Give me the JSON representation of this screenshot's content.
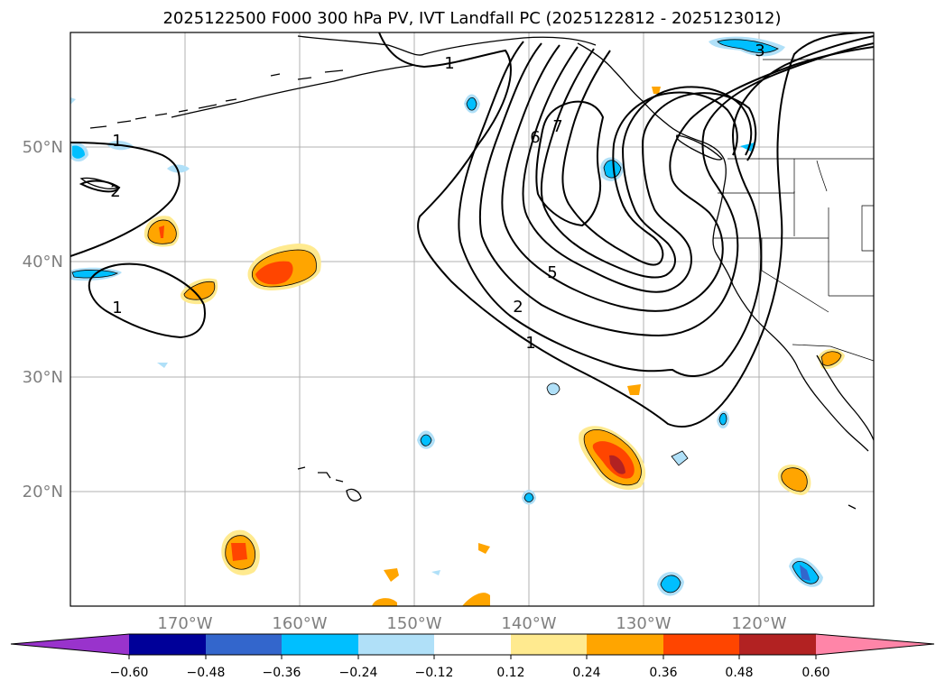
{
  "title": "2025122500 F000 300 hPa PV, IVT Landfall PC (2025122812 - 2025123012)",
  "map": {
    "lon_range": [
      -180,
      -110
    ],
    "lat_range": [
      10,
      60
    ],
    "lat_labels": [
      "50°N",
      "40°N",
      "30°N",
      "20°N"
    ],
    "lon_labels": [
      "170°W",
      "160°W",
      "150°W",
      "140°W",
      "130°W",
      "120°W"
    ]
  },
  "contours": {
    "labels": [
      "1",
      "1",
      "2",
      "1",
      "6",
      "7",
      "5",
      "2",
      "1",
      "3"
    ]
  },
  "colorbar": {
    "colors": [
      "#9933cc",
      "#000099",
      "#3366cc",
      "#00bfff",
      "#b0e0f8",
      "#ffffff",
      "#ffea8f",
      "#ffa500",
      "#ff4500",
      "#b22222",
      "#ff85a8"
    ],
    "tick_labels": [
      "−0.60",
      "−0.48",
      "−0.36",
      "−0.24",
      "−0.12",
      "0.12",
      "0.24",
      "0.36",
      "0.48",
      "0.60"
    ]
  },
  "colors": {
    "land_outline": "#000000",
    "grid": "#b0b0b0",
    "contour": "#000000"
  }
}
